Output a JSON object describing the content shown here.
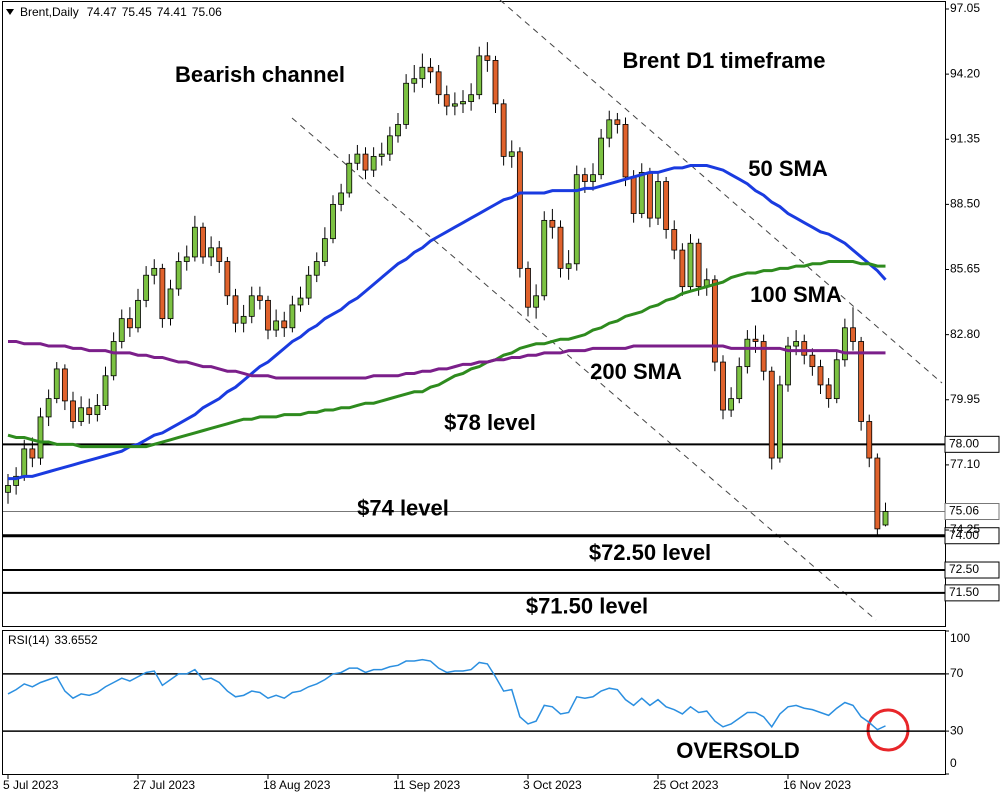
{
  "chart_data": [
    {
      "type": "candlestick",
      "symbol": "Brent,Daily",
      "symbol_values": [
        74.47,
        75.45,
        74.41,
        75.06
      ],
      "title": "Brent D1 timeframe",
      "annotation": "Bearish channel",
      "categories": [
        "5 Jul 2023",
        null,
        null,
        null,
        null,
        null,
        null,
        null,
        null,
        null,
        null,
        null,
        null,
        null,
        null,
        null,
        "27 Jul 2023",
        null,
        null,
        null,
        null,
        null,
        null,
        null,
        null,
        null,
        null,
        null,
        null,
        null,
        null,
        null,
        "18 Aug 2023",
        null,
        null,
        null,
        null,
        null,
        null,
        null,
        null,
        null,
        null,
        null,
        null,
        null,
        null,
        null,
        "11 Sep 2023",
        null,
        null,
        null,
        null,
        null,
        null,
        null,
        null,
        null,
        null,
        null,
        null,
        null,
        null,
        null,
        "3 Oct 2023",
        null,
        null,
        null,
        null,
        null,
        null,
        null,
        null,
        null,
        null,
        null,
        null,
        null,
        null,
        null,
        "25 Oct 2023",
        null,
        null,
        null,
        null,
        null,
        null,
        null,
        null,
        null,
        null,
        null,
        null,
        null,
        null,
        null,
        "16 Nov 2023",
        null,
        null,
        null,
        null,
        null,
        null,
        null,
        null,
        null,
        null,
        null,
        null
      ],
      "open": [
        75.9,
        76.2,
        76.6,
        77.8,
        77.4,
        79.2,
        80.0,
        81.3,
        79.9,
        79.0,
        79.6,
        79.3,
        79.7,
        81.0,
        82.5,
        83.5,
        83.1,
        84.3,
        85.4,
        85.7,
        83.5,
        84.8,
        86.0,
        86.2,
        87.5,
        86.2,
        86.6,
        86.0,
        84.5,
        83.3,
        83.6,
        84.5,
        84.3,
        83.0,
        83.4,
        83.1,
        84.1,
        84.4,
        85.4,
        86.0,
        87.0,
        88.5,
        89.0,
        90.3,
        90.7,
        90.0,
        90.6,
        90.7,
        91.5,
        92.0,
        93.8,
        94.0,
        94.5,
        94.3,
        93.3,
        92.8,
        92.9,
        93.0,
        93.3,
        95.0,
        94.8,
        92.9,
        90.6,
        90.8,
        85.7,
        84.0,
        84.5,
        87.8,
        87.5,
        85.7,
        85.9,
        89.8,
        89.5,
        89.8,
        91.4,
        92.2,
        92.0,
        89.7,
        88.1,
        89.9,
        87.9,
        89.5,
        87.4,
        86.5,
        84.9,
        86.8,
        84.9,
        85.2,
        81.6,
        79.5,
        80.0,
        81.4,
        82.6,
        82.5,
        81.2,
        77.4,
        80.6,
        82.3,
        82.5,
        81.9,
        81.4,
        80.6,
        80.0,
        81.7,
        83.1,
        82.5,
        79.0,
        77.4,
        74.47
      ],
      "high": [
        76.7,
        77.0,
        78.2,
        78.3,
        79.6,
        80.4,
        81.6,
        81.5,
        80.3,
        80.1,
        80.0,
        80.2,
        81.4,
        82.9,
        83.9,
        84.0,
        84.8,
        85.8,
        86.1,
        85.9,
        85.2,
        86.4,
        86.7,
        88.0,
        87.7,
        87.1,
        86.9,
        86.2,
        84.8,
        84.1,
        84.9,
        84.9,
        84.5,
        83.9,
        83.8,
        84.5,
        84.9,
        85.8,
        86.4,
        87.5,
        88.9,
        89.4,
        90.7,
        91.1,
        91.0,
        91.0,
        91.2,
        91.9,
        92.5,
        94.2,
        94.6,
        95.1,
        94.9,
        94.6,
        93.7,
        93.4,
        93.5,
        93.8,
        95.4,
        95.6,
        95.0,
        93.1,
        91.3,
        91.0,
        86.0,
        85.0,
        88.2,
        88.3,
        87.8,
        86.5,
        90.2,
        90.1,
        90.3,
        91.8,
        92.6,
        92.5,
        92.3,
        90.0,
        90.3,
        90.1,
        89.9,
        89.7,
        87.8,
        86.8,
        87.2,
        87.0,
        85.7,
        85.4,
        81.9,
        80.5,
        81.8,
        83.0,
        83.2,
        82.8,
        81.4,
        81.0,
        82.7,
        83.0,
        82.8,
        82.2,
        81.7,
        80.9,
        82.1,
        83.5,
        84.0,
        82.7,
        79.3,
        77.6,
        75.45
      ],
      "low": [
        75.4,
        75.8,
        76.4,
        77.0,
        77.1,
        78.8,
        79.8,
        79.5,
        78.7,
        78.8,
        78.9,
        79.0,
        79.5,
        80.8,
        82.2,
        82.7,
        82.9,
        84.0,
        85.0,
        83.1,
        83.2,
        84.5,
        85.6,
        86.0,
        85.9,
        85.8,
        85.5,
        84.1,
        82.9,
        82.9,
        83.3,
        83.9,
        82.6,
        82.7,
        82.7,
        82.9,
        83.8,
        84.1,
        85.1,
        85.8,
        86.8,
        88.2,
        88.8,
        90.0,
        89.6,
        89.7,
        90.2,
        90.4,
        91.2,
        91.8,
        93.4,
        93.6,
        93.8,
        92.9,
        92.4,
        92.4,
        92.5,
        92.6,
        93.1,
        94.3,
        92.5,
        90.2,
        90.1,
        85.3,
        83.6,
        83.5,
        84.3,
        87.0,
        85.3,
        85.2,
        85.6,
        89.0,
        89.1,
        89.6,
        91.0,
        91.6,
        89.3,
        87.7,
        87.9,
        87.5,
        87.6,
        87.0,
        86.1,
        84.5,
        84.7,
        84.5,
        84.5,
        81.2,
        79.1,
        79.2,
        79.8,
        81.1,
        82.0,
        80.8,
        76.9,
        77.2,
        80.3,
        81.9,
        81.5,
        81.0,
        80.2,
        79.6,
        79.8,
        81.4,
        82.1,
        78.6,
        77.0,
        74.0,
        74.41
      ],
      "close": [
        76.2,
        76.6,
        77.8,
        77.4,
        79.2,
        80.0,
        81.3,
        79.9,
        79.0,
        79.6,
        79.3,
        79.7,
        81.0,
        82.5,
        83.5,
        83.1,
        84.3,
        85.4,
        85.7,
        83.5,
        84.8,
        86.0,
        86.2,
        87.5,
        86.2,
        86.6,
        86.0,
        84.5,
        83.3,
        83.6,
        84.5,
        84.3,
        83.0,
        83.4,
        83.1,
        84.1,
        84.4,
        85.4,
        86.0,
        87.0,
        88.5,
        89.0,
        90.3,
        90.7,
        90.0,
        90.6,
        90.7,
        91.5,
        92.0,
        93.8,
        94.0,
        94.5,
        94.3,
        93.3,
        92.8,
        92.9,
        93.0,
        93.3,
        95.0,
        94.8,
        92.9,
        90.6,
        90.8,
        85.7,
        84.0,
        84.5,
        87.8,
        87.5,
        85.7,
        85.9,
        89.8,
        89.5,
        89.8,
        91.4,
        92.2,
        92.0,
        89.7,
        88.1,
        89.9,
        87.9,
        89.5,
        87.4,
        86.5,
        84.9,
        86.8,
        84.9,
        85.2,
        81.6,
        79.5,
        80.0,
        81.4,
        82.6,
        82.5,
        81.2,
        77.4,
        80.6,
        82.3,
        82.5,
        81.9,
        81.4,
        80.6,
        80.0,
        81.7,
        83.1,
        82.5,
        79.0,
        77.4,
        74.3,
        75.06
      ],
      "up_color": "#7cc242",
      "down_color": "#e0622c",
      "series": [
        {
          "name": "50 SMA",
          "color": "#1a3be0",
          "values": [
            76.5,
            76.5,
            76.6,
            76.6,
            76.7,
            76.8,
            76.9,
            77.0,
            77.1,
            77.2,
            77.3,
            77.4,
            77.5,
            77.6,
            77.7,
            77.9,
            78.0,
            78.2,
            78.4,
            78.5,
            78.7,
            78.9,
            79.1,
            79.3,
            79.6,
            79.8,
            80.0,
            80.3,
            80.5,
            80.8,
            81.1,
            81.4,
            81.6,
            81.9,
            82.2,
            82.5,
            82.7,
            83.0,
            83.2,
            83.5,
            83.7,
            83.9,
            84.2,
            84.4,
            84.7,
            85.0,
            85.3,
            85.6,
            85.9,
            86.1,
            86.4,
            86.6,
            86.9,
            87.1,
            87.3,
            87.5,
            87.7,
            87.9,
            88.1,
            88.3,
            88.5,
            88.7,
            88.8,
            89.0,
            89.0,
            89.0,
            89.0,
            89.1,
            89.1,
            89.1,
            89.1,
            89.2,
            89.2,
            89.3,
            89.4,
            89.5,
            89.6,
            89.7,
            89.8,
            89.9,
            89.9,
            90.0,
            90.1,
            90.1,
            90.2,
            90.2,
            90.2,
            90.1,
            90.0,
            89.8,
            89.6,
            89.4,
            89.1,
            88.9,
            88.6,
            88.4,
            88.1,
            87.9,
            87.7,
            87.5,
            87.3,
            87.2,
            87.0,
            86.8,
            86.5,
            86.2,
            85.9,
            85.6,
            85.2
          ]
        },
        {
          "name": "100 SMA",
          "color": "#2e8b1e",
          "values": [
            78.4,
            78.3,
            78.3,
            78.2,
            78.1,
            78.1,
            78.0,
            78.0,
            78.0,
            77.9,
            77.9,
            77.9,
            77.9,
            77.9,
            77.9,
            77.9,
            77.9,
            77.9,
            78.0,
            78.1,
            78.2,
            78.3,
            78.4,
            78.5,
            78.6,
            78.7,
            78.8,
            78.9,
            79.0,
            79.1,
            79.1,
            79.2,
            79.2,
            79.2,
            79.3,
            79.3,
            79.3,
            79.4,
            79.4,
            79.5,
            79.5,
            79.6,
            79.6,
            79.7,
            79.8,
            79.8,
            79.9,
            80.0,
            80.1,
            80.2,
            80.3,
            80.3,
            80.5,
            80.6,
            80.8,
            81.0,
            81.1,
            81.3,
            81.4,
            81.6,
            81.7,
            81.9,
            82.0,
            82.2,
            82.3,
            82.4,
            82.4,
            82.5,
            82.6,
            82.6,
            82.7,
            82.8,
            83.0,
            83.1,
            83.3,
            83.4,
            83.6,
            83.7,
            83.8,
            84.0,
            84.1,
            84.3,
            84.4,
            84.6,
            84.7,
            84.8,
            84.9,
            85.0,
            85.1,
            85.3,
            85.4,
            85.5,
            85.5,
            85.6,
            85.6,
            85.7,
            85.7,
            85.8,
            85.8,
            85.9,
            85.9,
            86.0,
            86.0,
            86.0,
            86.0,
            85.9,
            85.9,
            85.8,
            85.8
          ]
        },
        {
          "name": "200 SMA",
          "color": "#7b1f8a",
          "values": [
            82.5,
            82.5,
            82.4,
            82.4,
            82.4,
            82.3,
            82.3,
            82.3,
            82.2,
            82.2,
            82.1,
            82.1,
            82.1,
            82.0,
            82.0,
            82.0,
            81.9,
            81.9,
            81.8,
            81.8,
            81.7,
            81.6,
            81.6,
            81.5,
            81.4,
            81.4,
            81.3,
            81.2,
            81.2,
            81.1,
            81.0,
            81.0,
            81.0,
            80.9,
            80.9,
            80.9,
            80.9,
            80.9,
            80.9,
            80.9,
            80.9,
            80.9,
            80.9,
            80.9,
            80.9,
            81.0,
            81.0,
            81.0,
            81.0,
            81.1,
            81.1,
            81.2,
            81.2,
            81.3,
            81.3,
            81.4,
            81.5,
            81.5,
            81.6,
            81.6,
            81.7,
            81.7,
            81.8,
            81.8,
            81.9,
            81.9,
            82.0,
            82.0,
            82.0,
            82.1,
            82.1,
            82.1,
            82.2,
            82.2,
            82.2,
            82.2,
            82.2,
            82.3,
            82.3,
            82.3,
            82.3,
            82.3,
            82.3,
            82.3,
            82.3,
            82.3,
            82.3,
            82.3,
            82.3,
            82.2,
            82.2,
            82.2,
            82.2,
            82.2,
            82.2,
            82.2,
            82.1,
            82.1,
            82.1,
            82.1,
            82.1,
            82.1,
            82.1,
            82.0,
            82.0,
            82.0,
            82.0,
            82.0,
            82.0
          ]
        }
      ],
      "ylim": [
        70.05,
        97.4
      ],
      "yticks": [
        97.05,
        {
          "value": 94.2,
          "label": "94.20"
        },
        91.35,
        {
          "value": 88.5,
          "label": "88.50"
        },
        85.65,
        {
          "value": 82.8,
          "label": "82.80"
        },
        79.95,
        {
          "value": 77.1,
          "label": "77.10"
        },
        74.25
      ],
      "grid": false,
      "price_line": 75.06,
      "levels": [
        {
          "value": 78,
          "label": "78.00",
          "name": "$78 level"
        },
        {
          "value": 74,
          "label": "74.00",
          "name": "$74 level"
        },
        {
          "value": 72.5,
          "label": "72.50",
          "name": "$72.50 level"
        },
        {
          "value": 71.5,
          "label": "71.50",
          "name": "$71.50 level"
        }
      ]
    },
    {
      "type": "line",
      "name": "RSI(14)",
      "current": 33.6552,
      "color": "#2b8fe0",
      "values": [
        56,
        59,
        63,
        61,
        64,
        66,
        68,
        58,
        53,
        56,
        55,
        57,
        61,
        64,
        67,
        65,
        68,
        71,
        72,
        62,
        66,
        70,
        70,
        73,
        66,
        67,
        64,
        58,
        54,
        55,
        58,
        57,
        53,
        55,
        53,
        57,
        58,
        61,
        63,
        66,
        70,
        71,
        74,
        74,
        71,
        73,
        73,
        75,
        76,
        79,
        79,
        80,
        79,
        74,
        71,
        72,
        72,
        73,
        78,
        77,
        68,
        58,
        59,
        40,
        35,
        37,
        48,
        47,
        42,
        43,
        54,
        53,
        54,
        58,
        60,
        59,
        52,
        48,
        53,
        48,
        52,
        47,
        45,
        42,
        47,
        43,
        44,
        37,
        33,
        35,
        39,
        43,
        43,
        40,
        33,
        42,
        47,
        48,
        46,
        45,
        43,
        41,
        46,
        50,
        48,
        40,
        36,
        31,
        33.6552
      ],
      "ylim": [
        0,
        100
      ],
      "yticks": [
        100,
        70,
        30,
        0
      ],
      "levels": [
        70,
        30
      ],
      "annotation": "OVERSOLD",
      "annotation_color": "#e8262a"
    }
  ]
}
